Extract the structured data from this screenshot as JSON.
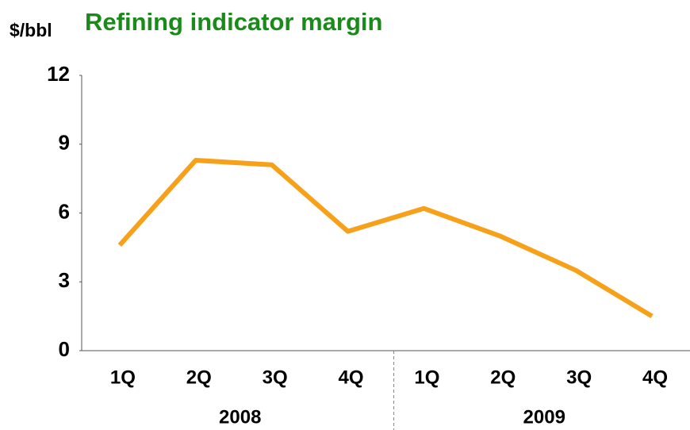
{
  "chart_data": {
    "type": "line",
    "title": "Refining indicator margin",
    "y_label": "$/bbl",
    "categories": [
      "1Q",
      "2Q",
      "3Q",
      "4Q",
      "1Q",
      "2Q",
      "3Q",
      "4Q"
    ],
    "groups": [
      "2008",
      "2009"
    ],
    "values": [
      4.6,
      8.3,
      8.1,
      5.2,
      6.2,
      5.0,
      3.5,
      1.5
    ],
    "color": "#f7a11a",
    "ylim": [
      0,
      12
    ],
    "yticks": [
      0,
      3,
      6,
      9,
      12
    ],
    "grid": false
  }
}
